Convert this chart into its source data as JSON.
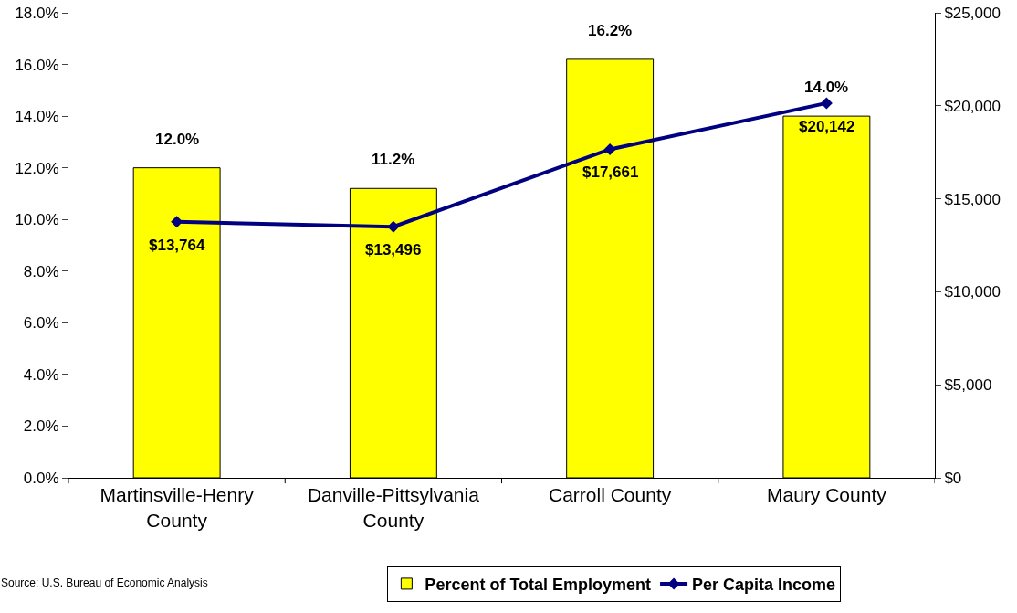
{
  "chart_data": {
    "type": "bar",
    "categories": [
      "Martinsville-Henry County",
      "Danville-Pittsylvania County",
      "Carroll County",
      "Maury County"
    ],
    "series": [
      {
        "name": "Percent of Total Employment",
        "color": "#ffff00",
        "values": [
          12.0,
          11.2,
          16.2,
          14.0
        ],
        "value_labels": [
          "12.0%",
          "11.2%",
          "16.2%",
          "14.0%"
        ]
      },
      {
        "name": "Per Capita Income",
        "type": "line",
        "axis": "y2",
        "color": "#000080",
        "values": [
          13764,
          13496,
          17661,
          20142
        ],
        "value_labels": [
          "$13,764",
          "$13,496",
          "$17,661",
          "$20,142"
        ]
      }
    ],
    "ylim": [
      0,
      18
    ],
    "yticks": [
      {
        "value": 0,
        "label": "0.0%"
      },
      {
        "value": 2,
        "label": "2.0%"
      },
      {
        "value": 4,
        "label": "4.0%"
      },
      {
        "value": 6,
        "label": "6.0%"
      },
      {
        "value": 8,
        "label": "8.0%"
      },
      {
        "value": 10,
        "label": "10.0%"
      },
      {
        "value": 12,
        "label": "12.0%"
      },
      {
        "value": 14,
        "label": "14.0%"
      },
      {
        "value": 16,
        "label": "16.0%"
      },
      {
        "value": 18,
        "label": "18.0%"
      }
    ],
    "y2lim": [
      0,
      25000
    ],
    "y2ticks": [
      {
        "value": 0,
        "label": "$0"
      },
      {
        "value": 5000,
        "label": "$5,000"
      },
      {
        "value": 10000,
        "label": "$10,000"
      },
      {
        "value": 15000,
        "label": "$15,000"
      },
      {
        "value": 20000,
        "label": "$20,000"
      },
      {
        "value": 25000,
        "label": "$25,000"
      }
    ],
    "marker": "diamond",
    "line_style": "solid",
    "grid": false,
    "legend": "bottom",
    "annotations": [
      "Source: U.S. Bureau of Economic Analysis"
    ]
  }
}
